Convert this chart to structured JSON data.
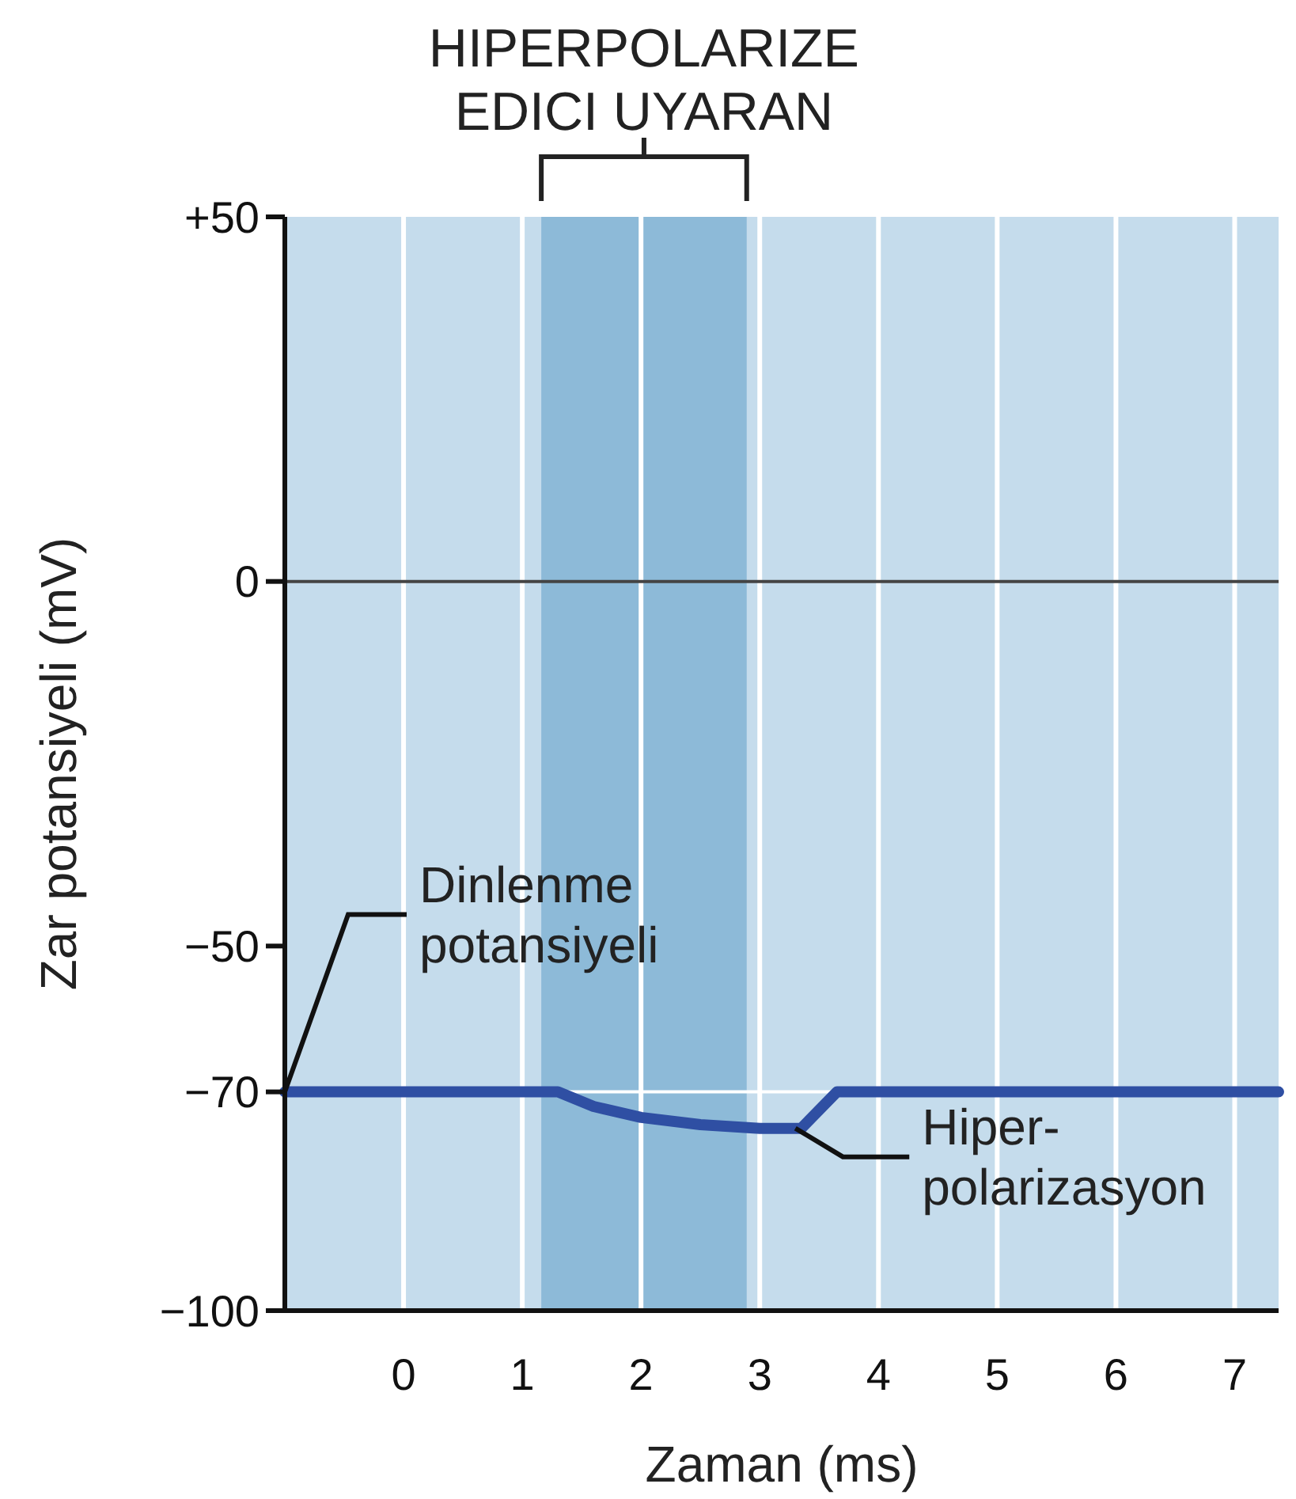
{
  "chart_data": {
    "type": "line",
    "xlabel": "Zaman (ms)",
    "ylabel": "Zar potansiyeli (mV)",
    "xlim": [
      -1,
      7.37
    ],
    "xticks": [
      0,
      1,
      2,
      3,
      4,
      5,
      6,
      7
    ],
    "ylim": [
      -100,
      50
    ],
    "yticks": [
      {
        "value": 50,
        "label": "+50"
      },
      0,
      {
        "value": -50,
        "label": "−50"
      },
      {
        "value": -70,
        "label": "−70"
      },
      {
        "value": -100,
        "label": "−100"
      }
    ],
    "grid": "x",
    "marker": "none",
    "line_style": "solid",
    "series": [
      {
        "color": "#2f4fa3",
        "x": [
          -1,
          1.3,
          1.6,
          2,
          2.5,
          3,
          3.35,
          3.65,
          7.37
        ],
        "values": [
          -70,
          -70,
          -72,
          -73.5,
          -74.5,
          -75,
          -75,
          -70,
          -70
        ]
      }
    ],
    "bands": [
      {
        "axis": "x",
        "from": 1.16,
        "to": 2.89,
        "label": "HIPERPOLARIZE\nEDICI UYARAN",
        "color": "#8dbad8"
      }
    ],
    "ref_lines": [
      {
        "axis": "y",
        "value": 0,
        "color": "#444444"
      },
      {
        "axis": "y",
        "value": -70,
        "color": "#ffffff"
      }
    ],
    "annotations": [
      {
        "text": "Dinlenme\npotansiyeli",
        "x": -1,
        "y": -70
      },
      {
        "text": "Hiper-\npolarizasyon",
        "x": 3.3,
        "y": -75
      }
    ]
  }
}
